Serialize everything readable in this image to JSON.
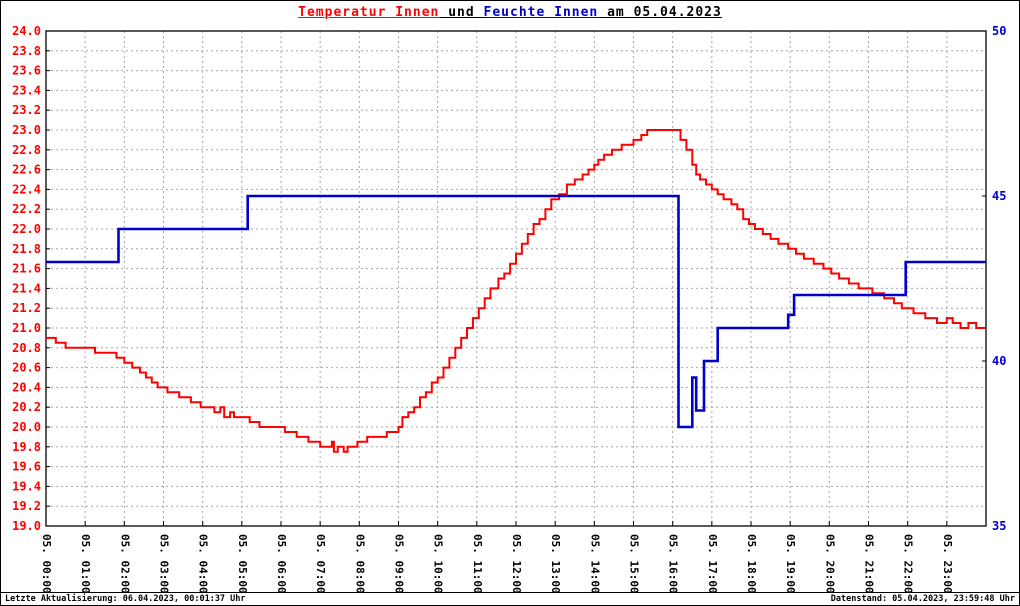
{
  "title": {
    "temperature": "Temperatur Innen",
    "connector": " und ",
    "humidity": "Feuchte Innen",
    "date_suffix": " am 05.04.2023"
  },
  "footer": {
    "left": "Letzte Aktualisierung: 06.04.2023, 00:01:37 Uhr",
    "right": "Datenstand: 05.04.2023, 23:59:48 Uhr"
  },
  "colors": {
    "temperature": "#ff0000",
    "humidity": "#0000cc",
    "grid": "#a6a6a6",
    "frame": "#000000",
    "background": "#ffffff"
  },
  "chart_data": {
    "type": "line",
    "title": "Temperatur Innen und Feuchte Innen am 05.04.2023",
    "grid": true,
    "legend": "none",
    "x_unit": "hour",
    "x_range": [
      0,
      24
    ],
    "x_tick_hours": [
      0,
      1,
      2,
      3,
      4,
      5,
      6,
      7,
      8,
      9,
      10,
      11,
      12,
      13,
      14,
      15,
      16,
      17,
      18,
      19,
      20,
      21,
      22,
      23
    ],
    "x_tick_labels": [
      "05. 00:00",
      "05. 01:00",
      "05. 02:00",
      "05. 03:00",
      "05. 04:00",
      "05. 05:00",
      "05. 06:00",
      "05. 07:00",
      "05. 08:00",
      "05. 09:00",
      "05. 10:00",
      "05. 11:00",
      "05. 12:00",
      "05. 13:00",
      "05. 14:00",
      "05. 15:00",
      "05. 16:00",
      "05. 17:00",
      "05. 18:00",
      "05. 19:00",
      "05. 20:00",
      "05. 21:00",
      "05. 22:00",
      "05. 23:00"
    ],
    "left_axis": {
      "min": 19.0,
      "max": 24.0,
      "step": 0.2,
      "color": "#ff0000",
      "tick_labels": [
        "19.0",
        "19.2",
        "19.4",
        "19.6",
        "19.8",
        "20.0",
        "20.2",
        "20.4",
        "20.6",
        "20.8",
        "21.0",
        "21.2",
        "21.4",
        "21.6",
        "21.8",
        "22.0",
        "22.2",
        "22.4",
        "22.6",
        "22.8",
        "23.0",
        "23.2",
        "23.4",
        "23.6",
        "23.8",
        "24.0"
      ]
    },
    "right_axis": {
      "min": 35,
      "max": 50,
      "color": "#0000cc",
      "tick_values": [
        35,
        40,
        45,
        50
      ],
      "tick_labels": [
        "35",
        "40",
        "45",
        "50"
      ]
    },
    "series": [
      {
        "name": "Temperatur Innen",
        "axis": "left",
        "color": "#ff0000",
        "line_style": "step",
        "stroke_width": 2,
        "points": [
          [
            0,
            20.9
          ],
          [
            0.25,
            20.85
          ],
          [
            0.5,
            20.8
          ],
          [
            1.2,
            20.8
          ],
          [
            1.25,
            20.75
          ],
          [
            1.8,
            20.7
          ],
          [
            2.0,
            20.65
          ],
          [
            2.2,
            20.6
          ],
          [
            2.4,
            20.55
          ],
          [
            2.55,
            20.5
          ],
          [
            2.7,
            20.45
          ],
          [
            2.85,
            20.4
          ],
          [
            3.1,
            20.35
          ],
          [
            3.4,
            20.3
          ],
          [
            3.7,
            20.25
          ],
          [
            3.95,
            20.2
          ],
          [
            4.3,
            20.15
          ],
          [
            4.45,
            20.2
          ],
          [
            4.55,
            20.1
          ],
          [
            4.7,
            20.15
          ],
          [
            4.8,
            20.1
          ],
          [
            5.2,
            20.05
          ],
          [
            5.45,
            20.0
          ],
          [
            6.1,
            19.95
          ],
          [
            6.4,
            19.9
          ],
          [
            6.7,
            19.85
          ],
          [
            7.0,
            19.8
          ],
          [
            7.3,
            19.85
          ],
          [
            7.35,
            19.75
          ],
          [
            7.45,
            19.8
          ],
          [
            7.6,
            19.75
          ],
          [
            7.7,
            19.8
          ],
          [
            7.95,
            19.85
          ],
          [
            8.2,
            19.9
          ],
          [
            8.7,
            19.95
          ],
          [
            9.0,
            20.0
          ],
          [
            9.1,
            20.1
          ],
          [
            9.25,
            20.15
          ],
          [
            9.4,
            20.2
          ],
          [
            9.55,
            20.3
          ],
          [
            9.7,
            20.35
          ],
          [
            9.85,
            20.45
          ],
          [
            10.0,
            20.5
          ],
          [
            10.15,
            20.6
          ],
          [
            10.3,
            20.7
          ],
          [
            10.45,
            20.8
          ],
          [
            10.6,
            20.9
          ],
          [
            10.75,
            21.0
          ],
          [
            10.9,
            21.1
          ],
          [
            11.05,
            21.2
          ],
          [
            11.2,
            21.3
          ],
          [
            11.35,
            21.4
          ],
          [
            11.55,
            21.5
          ],
          [
            11.7,
            21.55
          ],
          [
            11.85,
            21.65
          ],
          [
            12.0,
            21.75
          ],
          [
            12.15,
            21.85
          ],
          [
            12.3,
            21.95
          ],
          [
            12.45,
            22.05
          ],
          [
            12.6,
            22.1
          ],
          [
            12.75,
            22.2
          ],
          [
            12.9,
            22.3
          ],
          [
            13.1,
            22.35
          ],
          [
            13.3,
            22.45
          ],
          [
            13.5,
            22.5
          ],
          [
            13.7,
            22.55
          ],
          [
            13.85,
            22.6
          ],
          [
            14.0,
            22.65
          ],
          [
            14.1,
            22.7
          ],
          [
            14.25,
            22.75
          ],
          [
            14.45,
            22.8
          ],
          [
            14.7,
            22.85
          ],
          [
            15.0,
            22.9
          ],
          [
            15.2,
            22.95
          ],
          [
            15.35,
            23.0
          ],
          [
            16.1,
            23.0
          ],
          [
            16.2,
            22.9
          ],
          [
            16.35,
            22.8
          ],
          [
            16.5,
            22.65
          ],
          [
            16.6,
            22.55
          ],
          [
            16.7,
            22.5
          ],
          [
            16.85,
            22.45
          ],
          [
            17.0,
            22.4
          ],
          [
            17.15,
            22.35
          ],
          [
            17.3,
            22.3
          ],
          [
            17.5,
            22.25
          ],
          [
            17.65,
            22.2
          ],
          [
            17.8,
            22.1
          ],
          [
            17.95,
            22.05
          ],
          [
            18.1,
            22.0
          ],
          [
            18.3,
            21.95
          ],
          [
            18.5,
            21.9
          ],
          [
            18.7,
            21.85
          ],
          [
            18.95,
            21.8
          ],
          [
            19.15,
            21.75
          ],
          [
            19.35,
            21.7
          ],
          [
            19.6,
            21.65
          ],
          [
            19.85,
            21.6
          ],
          [
            20.05,
            21.55
          ],
          [
            20.25,
            21.5
          ],
          [
            20.5,
            21.45
          ],
          [
            20.75,
            21.4
          ],
          [
            21.1,
            21.35
          ],
          [
            21.4,
            21.3
          ],
          [
            21.65,
            21.25
          ],
          [
            21.85,
            21.2
          ],
          [
            22.15,
            21.15
          ],
          [
            22.45,
            21.1
          ],
          [
            22.75,
            21.05
          ],
          [
            23.0,
            21.1
          ],
          [
            23.15,
            21.05
          ],
          [
            23.35,
            21.0
          ],
          [
            23.55,
            21.05
          ],
          [
            23.75,
            21.0
          ],
          [
            24,
            21.0
          ]
        ]
      },
      {
        "name": "Feuchte Innen",
        "axis": "right",
        "color": "#0000cc",
        "line_style": "step",
        "stroke_width": 2.6,
        "points": [
          [
            0,
            43
          ],
          [
            1.85,
            44
          ],
          [
            5.15,
            45
          ],
          [
            16.15,
            38
          ],
          [
            16.5,
            39.5
          ],
          [
            16.6,
            38.5
          ],
          [
            16.8,
            40
          ],
          [
            17.15,
            41
          ],
          [
            18.95,
            41.4
          ],
          [
            19.1,
            42
          ],
          [
            21.95,
            43
          ],
          [
            24,
            43
          ]
        ]
      }
    ]
  }
}
